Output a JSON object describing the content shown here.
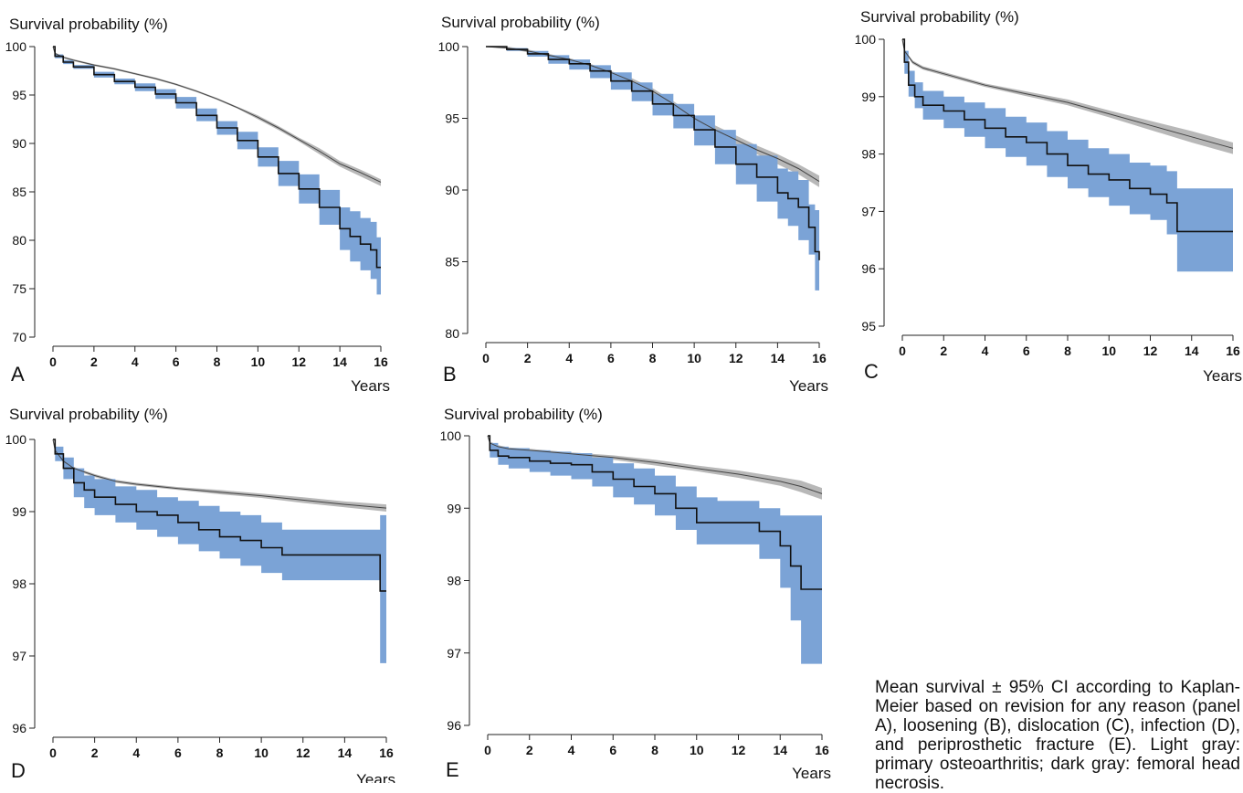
{
  "caption": "Mean survival ± 95% CI according to Kaplan-Meier based on revision for any reason (panel A), loosening (B), dislocation (C), infection (D), and periprosthetic fracture (E). Light gray: primary osteoarthritis; dark gray: femoral head necrosis.",
  "colors": {
    "ci_band": "#7ba3d6",
    "gray_band": "#b8b8b8",
    "line": "#111111",
    "axis": "#222222"
  },
  "chart_data": [
    {
      "type": "line",
      "panel_letter": "A",
      "title": "Survival probability (%)",
      "xlabel": "Years",
      "ylabel": "",
      "xlim": [
        0,
        16
      ],
      "ylim": [
        70,
        100
      ],
      "xticks": [
        0,
        2,
        4,
        6,
        8,
        10,
        12,
        14,
        16
      ],
      "yticks": [
        70,
        75,
        80,
        85,
        90,
        95,
        100
      ],
      "series": [
        {
          "style": "gray",
          "step": false,
          "x": [
            0,
            0.1,
            0.5,
            1,
            2,
            3,
            4,
            5,
            6,
            7,
            8,
            9,
            10,
            11,
            12,
            13,
            14,
            15,
            16
          ],
          "y": [
            100,
            99.3,
            98.9,
            98.6,
            98.1,
            97.7,
            97.2,
            96.7,
            96.1,
            95.4,
            94.6,
            93.7,
            92.7,
            91.6,
            90.4,
            89.2,
            87.9,
            87.0,
            86.0
          ],
          "lower": [
            100,
            99.2,
            98.8,
            98.5,
            98.0,
            97.6,
            97.1,
            96.6,
            96.0,
            95.3,
            94.5,
            93.6,
            92.5,
            91.4,
            90.2,
            88.9,
            87.6,
            86.6,
            85.6
          ],
          "upper": [
            100,
            99.4,
            99.0,
            98.7,
            98.2,
            97.8,
            97.3,
            96.8,
            96.2,
            95.5,
            94.7,
            93.8,
            92.9,
            91.8,
            90.6,
            89.5,
            88.2,
            87.3,
            86.3
          ]
        },
        {
          "style": "blue",
          "step": true,
          "x": [
            0,
            0.1,
            0.5,
            1,
            2,
            3,
            4,
            5,
            6,
            7,
            8,
            9,
            10,
            11,
            12,
            13,
            14,
            14.5,
            15,
            15.5,
            15.8,
            16
          ],
          "y": [
            100,
            99.0,
            98.4,
            97.9,
            97.1,
            96.4,
            95.8,
            95.1,
            94.2,
            92.9,
            91.6,
            90.3,
            88.6,
            86.9,
            85.3,
            83.4,
            81.2,
            80.4,
            79.6,
            79.0,
            77.2,
            77.2
          ],
          "lower": [
            100,
            98.8,
            98.2,
            97.7,
            96.8,
            96.1,
            95.4,
            94.6,
            93.6,
            92.3,
            90.9,
            89.4,
            87.6,
            85.6,
            83.8,
            81.6,
            79.0,
            77.8,
            76.9,
            76.0,
            74.4,
            74.4
          ],
          "upper": [
            100,
            99.2,
            98.6,
            98.1,
            97.4,
            96.7,
            96.2,
            95.6,
            94.8,
            93.6,
            92.3,
            91.2,
            89.6,
            88.2,
            86.8,
            85.2,
            83.4,
            83.0,
            82.3,
            81.9,
            80.3,
            80.3
          ]
        }
      ]
    },
    {
      "type": "line",
      "panel_letter": "B",
      "title": "Survival probability (%)",
      "xlabel": "Years",
      "ylabel": "",
      "xlim": [
        0,
        16
      ],
      "ylim": [
        80,
        100
      ],
      "xticks": [
        0,
        2,
        4,
        6,
        8,
        10,
        12,
        14,
        16
      ],
      "yticks": [
        80,
        85,
        90,
        95,
        100
      ],
      "series": [
        {
          "style": "gray",
          "step": false,
          "x": [
            0,
            1,
            2,
            3,
            4,
            5,
            6,
            7,
            8,
            9,
            10,
            11,
            12,
            13,
            14,
            15,
            16
          ],
          "y": [
            100,
            99.9,
            99.7,
            99.4,
            99.1,
            98.7,
            98.2,
            97.6,
            96.9,
            96.0,
            95.0,
            94.2,
            93.5,
            92.8,
            92.2,
            91.5,
            90.6
          ],
          "lower": [
            100,
            99.9,
            99.6,
            99.3,
            99.0,
            98.6,
            98.1,
            97.4,
            96.7,
            95.8,
            94.8,
            93.9,
            93.2,
            92.5,
            91.8,
            91.1,
            90.2
          ],
          "upper": [
            100,
            100.0,
            99.8,
            99.5,
            99.2,
            98.8,
            98.3,
            97.8,
            97.1,
            96.2,
            95.2,
            94.5,
            93.8,
            93.1,
            92.5,
            91.8,
            91.0
          ]
        },
        {
          "style": "blue",
          "step": true,
          "x": [
            0,
            1,
            2,
            3,
            4,
            5,
            6,
            7,
            8,
            9,
            10,
            11,
            12,
            13,
            14,
            14.5,
            15,
            15.5,
            15.8,
            16
          ],
          "y": [
            100,
            99.8,
            99.5,
            99.1,
            98.8,
            98.3,
            97.6,
            96.9,
            96.0,
            95.2,
            94.2,
            93.0,
            91.8,
            90.9,
            89.8,
            89.4,
            88.8,
            87.4,
            85.7,
            85.1
          ],
          "lower": [
            100,
            99.7,
            99.3,
            98.8,
            98.4,
            97.8,
            97.0,
            96.2,
            95.2,
            94.3,
            93.1,
            91.8,
            90.4,
            89.2,
            88.0,
            87.5,
            86.5,
            85.5,
            83.0,
            83.0
          ],
          "upper": [
            100,
            99.9,
            99.7,
            99.4,
            99.1,
            98.7,
            98.2,
            97.5,
            96.7,
            96.0,
            95.2,
            94.2,
            93.2,
            92.4,
            91.5,
            91.3,
            90.7,
            89.0,
            88.6,
            87.2
          ]
        }
      ]
    },
    {
      "type": "line",
      "panel_letter": "C",
      "title": "Survival probability (%)",
      "xlabel": "Years",
      "ylabel": "",
      "xlim": [
        0,
        16
      ],
      "ylim": [
        95,
        100
      ],
      "xticks": [
        0,
        2,
        4,
        6,
        8,
        10,
        12,
        14,
        16
      ],
      "yticks": [
        95,
        96,
        97,
        98,
        99,
        100
      ],
      "series": [
        {
          "style": "gray",
          "step": false,
          "x": [
            0,
            0.1,
            0.5,
            1,
            2,
            4,
            6,
            8,
            10,
            12,
            14,
            16
          ],
          "y": [
            100,
            99.8,
            99.6,
            99.5,
            99.4,
            99.2,
            99.05,
            98.9,
            98.7,
            98.5,
            98.3,
            98.1
          ],
          "lower": [
            100,
            99.78,
            99.57,
            99.47,
            99.37,
            99.17,
            99.01,
            98.85,
            98.64,
            98.42,
            98.2,
            98.0
          ],
          "upper": [
            100,
            99.82,
            99.63,
            99.53,
            99.43,
            99.23,
            99.09,
            98.95,
            98.76,
            98.58,
            98.4,
            98.2
          ]
        },
        {
          "style": "blue",
          "step": true,
          "x": [
            0,
            0.1,
            0.3,
            0.6,
            1,
            2,
            3,
            4,
            5,
            6,
            7,
            8,
            9,
            10,
            11,
            12,
            12.8,
            13.3,
            14,
            16
          ],
          "y": [
            100,
            99.6,
            99.2,
            99.0,
            98.85,
            98.75,
            98.6,
            98.45,
            98.3,
            98.2,
            98.0,
            97.8,
            97.65,
            97.55,
            97.4,
            97.3,
            97.15,
            96.65,
            96.65,
            96.65
          ],
          "lower": [
            100,
            99.4,
            99.0,
            98.8,
            98.6,
            98.45,
            98.3,
            98.1,
            97.95,
            97.8,
            97.6,
            97.4,
            97.25,
            97.1,
            96.95,
            96.85,
            96.6,
            95.95,
            95.95,
            95.95
          ],
          "upper": [
            100,
            99.8,
            99.45,
            99.25,
            99.1,
            99.0,
            98.9,
            98.8,
            98.65,
            98.55,
            98.4,
            98.25,
            98.1,
            98.0,
            97.85,
            97.8,
            97.7,
            97.4,
            97.4,
            97.4
          ]
        }
      ]
    },
    {
      "type": "line",
      "panel_letter": "D",
      "title": "Survival probability (%)",
      "xlabel": "Years",
      "ylabel": "",
      "xlim": [
        0,
        16
      ],
      "ylim": [
        96,
        100
      ],
      "xticks": [
        0,
        2,
        4,
        6,
        8,
        10,
        12,
        14,
        16
      ],
      "yticks": [
        96,
        97,
        98,
        99,
        100
      ],
      "series": [
        {
          "style": "gray",
          "step": false,
          "x": [
            0,
            0.1,
            0.5,
            1,
            2,
            3,
            4,
            6,
            8,
            10,
            12,
            14,
            16
          ],
          "y": [
            100,
            99.85,
            99.7,
            99.6,
            99.5,
            99.42,
            99.38,
            99.32,
            99.27,
            99.22,
            99.16,
            99.1,
            99.05
          ],
          "lower": [
            100,
            99.83,
            99.68,
            99.58,
            99.48,
            99.4,
            99.36,
            99.3,
            99.24,
            99.19,
            99.12,
            99.06,
            99.0
          ],
          "upper": [
            100,
            99.87,
            99.72,
            99.62,
            99.52,
            99.44,
            99.4,
            99.34,
            99.3,
            99.25,
            99.2,
            99.14,
            99.1
          ]
        },
        {
          "style": "blue",
          "step": true,
          "x": [
            0,
            0.1,
            0.5,
            1,
            1.5,
            2,
            3,
            4,
            5,
            6,
            7,
            8,
            9,
            10,
            11,
            12,
            14,
            15.7,
            16
          ],
          "y": [
            100,
            99.8,
            99.6,
            99.4,
            99.3,
            99.2,
            99.1,
            99.0,
            98.95,
            98.85,
            98.75,
            98.65,
            98.6,
            98.5,
            98.4,
            98.4,
            98.4,
            97.9,
            97.9
          ],
          "lower": [
            100,
            99.7,
            99.45,
            99.2,
            99.05,
            98.95,
            98.85,
            98.75,
            98.65,
            98.55,
            98.45,
            98.35,
            98.25,
            98.15,
            98.05,
            98.05,
            98.05,
            96.9,
            96.9
          ],
          "upper": [
            100,
            99.9,
            99.75,
            99.6,
            99.5,
            99.45,
            99.35,
            99.3,
            99.2,
            99.15,
            99.08,
            99.0,
            98.95,
            98.85,
            98.75,
            98.75,
            98.75,
            98.95,
            98.95
          ]
        }
      ]
    },
    {
      "type": "line",
      "panel_letter": "E",
      "title": "Survival probability (%)",
      "xlabel": "Years",
      "ylabel": "",
      "xlim": [
        0,
        16
      ],
      "ylim": [
        96,
        100
      ],
      "xticks": [
        0,
        2,
        4,
        6,
        8,
        10,
        12,
        14,
        16
      ],
      "yticks": [
        96,
        97,
        98,
        99,
        100
      ],
      "series": [
        {
          "style": "gray",
          "step": false,
          "x": [
            0,
            0.1,
            0.5,
            1,
            2,
            4,
            6,
            8,
            10,
            12,
            14,
            15,
            16
          ],
          "y": [
            100,
            99.9,
            99.85,
            99.82,
            99.8,
            99.75,
            99.7,
            99.63,
            99.55,
            99.47,
            99.37,
            99.3,
            99.2
          ],
          "lower": [
            100,
            99.88,
            99.83,
            99.8,
            99.78,
            99.73,
            99.67,
            99.59,
            99.51,
            99.42,
            99.31,
            99.22,
            99.12
          ],
          "upper": [
            100,
            99.92,
            99.87,
            99.84,
            99.82,
            99.77,
            99.73,
            99.67,
            99.59,
            99.52,
            99.43,
            99.38,
            99.28
          ]
        },
        {
          "style": "blue",
          "step": true,
          "x": [
            0,
            0.1,
            0.5,
            1,
            2,
            3,
            4,
            5,
            6,
            7,
            8,
            9,
            10,
            11,
            12,
            13,
            14,
            14.5,
            15,
            16
          ],
          "y": [
            100,
            99.8,
            99.72,
            99.7,
            99.65,
            99.62,
            99.6,
            99.5,
            99.4,
            99.3,
            99.2,
            99.0,
            98.8,
            98.8,
            98.8,
            98.68,
            98.48,
            98.2,
            97.88,
            97.88
          ],
          "lower": [
            100,
            99.7,
            99.6,
            99.55,
            99.5,
            99.45,
            99.4,
            99.3,
            99.15,
            99.05,
            98.9,
            98.7,
            98.5,
            98.5,
            98.5,
            98.3,
            97.9,
            97.45,
            96.85,
            96.85
          ],
          "upper": [
            100,
            99.9,
            99.85,
            99.83,
            99.8,
            99.78,
            99.76,
            99.7,
            99.62,
            99.55,
            99.45,
            99.3,
            99.15,
            99.1,
            99.1,
            99.0,
            98.9,
            98.9,
            98.9,
            98.9
          ]
        }
      ]
    }
  ]
}
